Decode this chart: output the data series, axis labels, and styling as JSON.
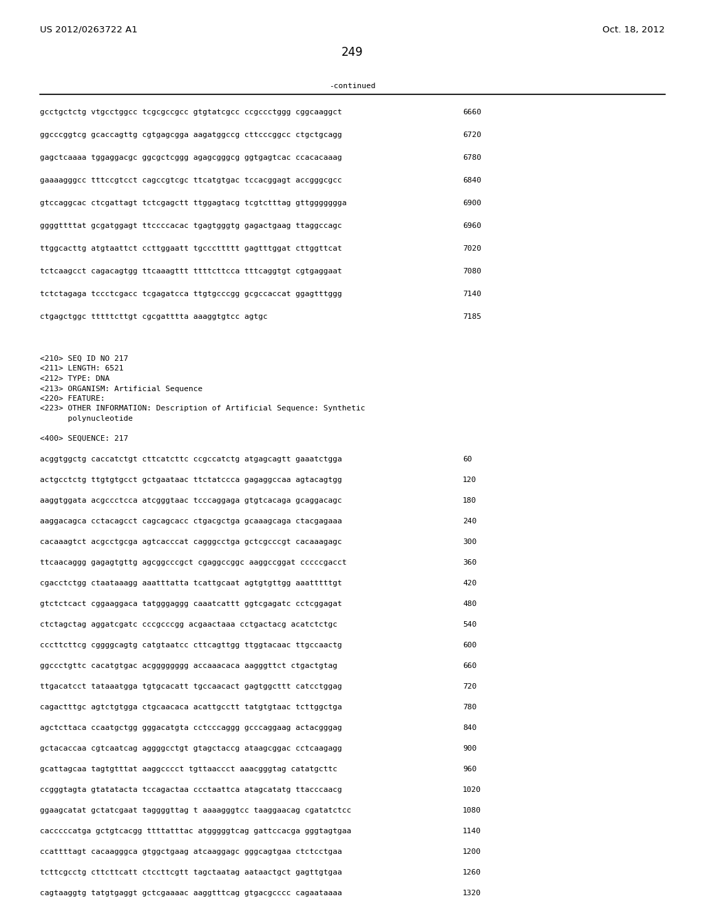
{
  "header_left": "US 2012/0263722 A1",
  "header_right": "Oct. 18, 2012",
  "page_number": "249",
  "continued_label": "-continued",
  "background_color": "#ffffff",
  "text_color": "#000000",
  "font_size_header": 9.5,
  "font_size_body": 8.0,
  "font_size_page": 12,
  "sequence_lines_top": [
    [
      "gcctgctctg vtgcctggcc tcgcgccgcc gtgtatcgcc ccgccctggg cggcaaggct",
      "6660"
    ],
    [
      "ggcccggtcg gcaccagttg cgtgagcgga aagatggccg cttcccggcc ctgctgcagg",
      "6720"
    ],
    [
      "gagctcaaaa tggaggacgc ggcgctcggg agagcgggcg ggtgagtcac ccacacaaag",
      "6780"
    ],
    [
      "gaaaagggcc tttccgtcct cagccgtcgc ttcatgtgac tccacggagt accgggcgcc",
      "6840"
    ],
    [
      "gtccaggcac ctcgattagt tctcgagctt ttggagtacg tcgtctttag gttggggggga",
      "6900"
    ],
    [
      "ggggttttat gcgatggagt ttccccacac tgagtgggtg gagactgaag ttaggccagc",
      "6960"
    ],
    [
      "ttggcacttg atgtaattct ccttggaatt tgcccttttt gagtttggat cttggttcat",
      "7020"
    ],
    [
      "tctcaagcct cagacagtgg ttcaaagttt ttttcttcca tttcaggtgt cgtgaggaat",
      "7080"
    ],
    [
      "tctctagaga tccctcgacc tcgagatcca ttgtgcccgg gcgccaccat ggagtttggg",
      "7140"
    ],
    [
      "ctgagctggc tttttcttgt cgcgatttta aaaggtgtcc agtgc",
      "7185"
    ]
  ],
  "seq_info_lines": [
    "<210> SEQ ID NO 217",
    "<211> LENGTH: 6521",
    "<212> TYPE: DNA",
    "<213> ORGANISM: Artificial Sequence",
    "<220> FEATURE:",
    "<223> OTHER INFORMATION: Description of Artificial Sequence: Synthetic",
    "      polynucleotide"
  ],
  "seq400_label": "<400> SEQUENCE: 217",
  "sequence_lines_bottom": [
    [
      "acggtggctg caccatctgt cttcatcttc ccgccatctg atgagcagtt gaaatctgga",
      "60"
    ],
    [
      "actgcctctg ttgtgtgcct gctgaataac ttctatccca gagaggccaa agtacagtgg",
      "120"
    ],
    [
      "aaggtggata acgccctcca atcgggtaac tcccaggaga gtgtcacaga gcaggacagc",
      "180"
    ],
    [
      "aaggacagca cctacagcct cagcagcacc ctgacgctga gcaaagcaga ctacgagaaa",
      "240"
    ],
    [
      "cacaaagtct acgcctgcga agtcacccat cagggcctga gctcgcccgt cacaaagagc",
      "300"
    ],
    [
      "ttcaacaggg gagagtgttg agcggcccgct cgaggccggc aaggccggat cccccgacct",
      "360"
    ],
    [
      "cgacctctgg ctaataaagg aaatttatta tcattgcaat agtgtgttgg aaatttttgt",
      "420"
    ],
    [
      "gtctctcact cggaaggaca tatgggaggg caaatcattt ggtcgagatc cctcggagat",
      "480"
    ],
    [
      "ctctagctag aggatcgatc cccgcccgg acgaactaaa cctgactacg acatctctgc",
      "540"
    ],
    [
      "cccttcttcg cggggcagtg catgtaatcc cttcagttgg ttggtacaac ttgccaactg",
      "600"
    ],
    [
      "ggccctgttc cacatgtgac acgggggggg accaaacaca aagggttct ctgactgtag",
      "660"
    ],
    [
      "ttgacatcct tataaatgga tgtgcacatt tgccaacact gagtggcttt catcctggag",
      "720"
    ],
    [
      "cagactttgc agtctgtgga ctgcaacaca acattgcctt tatgtgtaac tcttggctga",
      "780"
    ],
    [
      "agctcttaca ccaatgctgg gggacatgta cctcccaggg gcccaggaag actacgggag",
      "840"
    ],
    [
      "gctacaccaa cgtcaatcag aggggcctgt gtagctaccg ataagcggac cctcaagagg",
      "900"
    ],
    [
      "gcattagcaa tagtgtttat aaggcccct tgttaaccct aaacgggtag catatgcttc",
      "960"
    ],
    [
      "ccgggtagta gtatatacta tccagactaa ccctaattca atagcatatg ttacccaacg",
      "1020"
    ],
    [
      "ggaagcatat gctatcgaat taggggttag t aaaagggtcc taaggaacag cgatatctcc",
      "1080"
    ],
    [
      "cacccccatga gctgtcacgg ttttatttac atgggggtcag gattccacga gggtagtgaa",
      "1140"
    ],
    [
      "ccattttagt cacaagggca gtggctgaag atcaaggagc gggcagtgaa ctctcctgaa",
      "1200"
    ],
    [
      "tcttcgcctg cttcttcatt ctccttcgtt tagctaatag aataactgct gagttgtgaa",
      "1260"
    ],
    [
      "cagtaaggtg tatgtgaggt gctcgaaaac aaggtttcag gtgacgcccc cagaataaaa",
      "1320"
    ]
  ]
}
